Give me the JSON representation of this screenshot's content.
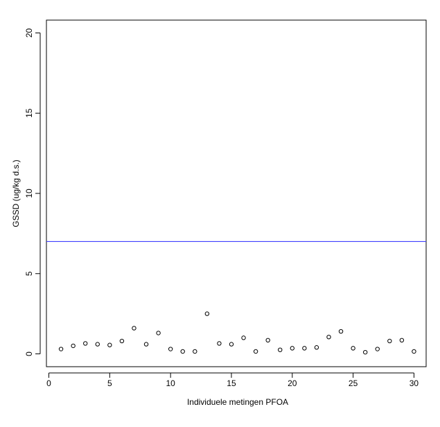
{
  "chart_data": {
    "type": "scatter",
    "title": "",
    "xlabel": "Individuele metingen PFOA",
    "ylabel": "GSSD (ug/kg d.s.)",
    "xlim": [
      -0.2,
      31
    ],
    "ylim": [
      -0.8,
      20.8
    ],
    "x_ticks": [
      0,
      5,
      10,
      15,
      20,
      25,
      30
    ],
    "y_ticks": [
      0,
      5,
      10,
      15,
      20
    ],
    "grid": false,
    "legend": "none",
    "point_color": "#000000",
    "reference_line": {
      "y": 7,
      "color": "#4040ff"
    },
    "x": [
      1,
      2,
      3,
      4,
      5,
      6,
      7,
      8,
      9,
      10,
      11,
      12,
      13,
      14,
      15,
      16,
      17,
      18,
      19,
      20,
      21,
      22,
      23,
      24,
      25,
      26,
      27,
      28,
      29,
      30
    ],
    "y": [
      0.3,
      0.5,
      0.65,
      0.6,
      0.55,
      0.8,
      1.6,
      0.6,
      1.3,
      0.3,
      0.15,
      0.15,
      2.5,
      0.65,
      0.6,
      1.0,
      0.15,
      0.85,
      0.25,
      0.35,
      0.35,
      0.4,
      1.05,
      1.4,
      0.35,
      0.1,
      0.3,
      0.8,
      0.85,
      0.15
    ]
  }
}
